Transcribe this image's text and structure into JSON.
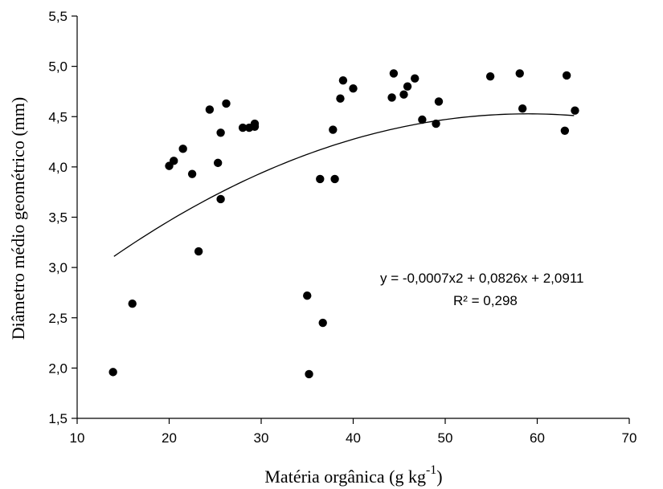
{
  "chart_data": {
    "type": "scatter",
    "xlabel": "Matéria orgânica (g kg",
    "xlabel_sup": "-1",
    "xlabel_close": ")",
    "ylabel": "Diâmetro médio geométrico (mm)",
    "xlim": [
      10,
      70
    ],
    "ylim": [
      1.5,
      5.5
    ],
    "x_ticks": [
      10,
      20,
      30,
      40,
      50,
      60,
      70
    ],
    "y_ticks": [
      1.5,
      2.0,
      2.5,
      3.0,
      3.5,
      4.0,
      4.5,
      5.0,
      5.5
    ],
    "x_tick_labels": [
      "10",
      "20",
      "30",
      "40",
      "50",
      "60",
      "70"
    ],
    "y_tick_labels": [
      "1,5",
      "2,0",
      "2,5",
      "3,0",
      "3,5",
      "4,0",
      "4,5",
      "5,0",
      "5,5"
    ],
    "grid": false,
    "legend": "none",
    "points": [
      [
        13.9,
        1.96
      ],
      [
        16.0,
        2.64
      ],
      [
        20.0,
        4.01
      ],
      [
        20.5,
        4.06
      ],
      [
        21.5,
        4.18
      ],
      [
        22.5,
        3.93
      ],
      [
        23.2,
        3.16
      ],
      [
        24.4,
        4.57
      ],
      [
        25.3,
        4.04
      ],
      [
        25.6,
        4.34
      ],
      [
        25.6,
        3.68
      ],
      [
        26.2,
        4.63
      ],
      [
        28.0,
        4.39
      ],
      [
        28.7,
        4.39
      ],
      [
        29.3,
        4.43
      ],
      [
        29.3,
        4.4
      ],
      [
        35.0,
        2.72
      ],
      [
        35.2,
        1.94
      ],
      [
        36.4,
        3.88
      ],
      [
        36.7,
        2.45
      ],
      [
        37.8,
        4.37
      ],
      [
        38.0,
        3.88
      ],
      [
        38.6,
        4.68
      ],
      [
        38.9,
        4.86
      ],
      [
        40.0,
        4.78
      ],
      [
        44.2,
        4.69
      ],
      [
        44.4,
        4.93
      ],
      [
        45.5,
        4.72
      ],
      [
        45.9,
        4.8
      ],
      [
        46.7,
        4.88
      ],
      [
        47.5,
        4.47
      ],
      [
        49.0,
        4.43
      ],
      [
        49.3,
        4.65
      ],
      [
        54.9,
        4.9
      ],
      [
        58.1,
        4.93
      ],
      [
        58.4,
        4.58
      ],
      [
        63.0,
        4.36
      ],
      [
        63.2,
        4.91
      ],
      [
        64.1,
        4.56
      ]
    ],
    "trendline": {
      "a": -0.0007,
      "b": 0.0826,
      "c": 2.0911,
      "x_range": [
        14,
        64
      ]
    },
    "equation_text": "y = -0,0007x2 + 0,0826x + 2,0911",
    "r2_text": "R² = 0,298",
    "marker_color": "#000000",
    "line_color": "#000000"
  }
}
